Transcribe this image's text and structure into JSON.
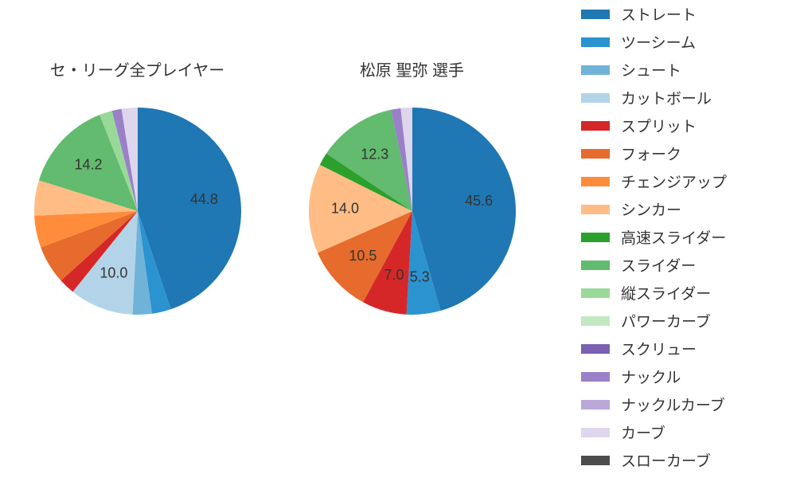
{
  "background_color": "#ffffff",
  "text_color": "#333333",
  "title_fontsize": 20,
  "label_fontsize": 18,
  "legend_fontsize": 19,
  "pie_radius": 130,
  "pie_start_angle_deg": 90,
  "pie_direction": "clockwise",
  "label_position_ratio": 0.65,
  "legend": {
    "swatch_width": 36,
    "swatch_height": 12,
    "item_height": 35,
    "items": [
      {
        "label": "ストレート",
        "color": "#1f77b4"
      },
      {
        "label": "ツーシーム",
        "color": "#2b93d0"
      },
      {
        "label": "シュート",
        "color": "#6fb3d9"
      },
      {
        "label": "カットボール",
        "color": "#b3d4e8"
      },
      {
        "label": "スプリット",
        "color": "#d62728"
      },
      {
        "label": "フォーク",
        "color": "#e66b2c"
      },
      {
        "label": "チェンジアップ",
        "color": "#ff8c3a"
      },
      {
        "label": "シンカー",
        "color": "#ffbd85"
      },
      {
        "label": "高速スライダー",
        "color": "#2ca02c"
      },
      {
        "label": "スライダー",
        "color": "#62bb6e"
      },
      {
        "label": "縦スライダー",
        "color": "#98d998"
      },
      {
        "label": "パワーカーブ",
        "color": "#c2e8c2"
      },
      {
        "label": "スクリュー",
        "color": "#7a5fb3"
      },
      {
        "label": "ナックル",
        "color": "#9980c9"
      },
      {
        "label": "ナックルカーブ",
        "color": "#baa8d9"
      },
      {
        "label": "カーブ",
        "color": "#ded6ec"
      },
      {
        "label": "スローカーブ",
        "color": "#4d4d4d"
      }
    ]
  },
  "charts": [
    {
      "title": "セ・リーグ全プレイヤー",
      "type": "pie",
      "slices": [
        {
          "value": 44.8,
          "color": "#1f77b4",
          "show_label": true
        },
        {
          "value": 3.0,
          "color": "#2b93d0",
          "show_label": false
        },
        {
          "value": 3.0,
          "color": "#6fb3d9",
          "show_label": false
        },
        {
          "value": 10.0,
          "color": "#b3d4e8",
          "show_label": true
        },
        {
          "value": 2.5,
          "color": "#d62728",
          "show_label": false
        },
        {
          "value": 6.0,
          "color": "#e66b2c",
          "show_label": false
        },
        {
          "value": 5.0,
          "color": "#ff8c3a",
          "show_label": false
        },
        {
          "value": 5.5,
          "color": "#ffbd85",
          "show_label": false
        },
        {
          "value": 14.2,
          "color": "#62bb6e",
          "show_label": true
        },
        {
          "value": 2.0,
          "color": "#98d998",
          "show_label": false
        },
        {
          "value": 1.5,
          "color": "#9980c9",
          "show_label": false
        },
        {
          "value": 2.5,
          "color": "#ded6ec",
          "show_label": false
        }
      ]
    },
    {
      "title": "松原 聖弥  選手",
      "type": "pie",
      "slices": [
        {
          "value": 45.6,
          "color": "#1f77b4",
          "show_label": true
        },
        {
          "value": 5.3,
          "color": "#2b93d0",
          "show_label": true
        },
        {
          "value": 7.0,
          "color": "#d62728",
          "show_label": true
        },
        {
          "value": 10.5,
          "color": "#e66b2c",
          "show_label": true
        },
        {
          "value": 14.0,
          "color": "#ffbd85",
          "show_label": true
        },
        {
          "value": 2.0,
          "color": "#2ca02c",
          "show_label": false
        },
        {
          "value": 12.3,
          "color": "#62bb6e",
          "show_label": true
        },
        {
          "value": 1.5,
          "color": "#9980c9",
          "show_label": false
        },
        {
          "value": 1.8,
          "color": "#ded6ec",
          "show_label": false
        }
      ]
    }
  ]
}
